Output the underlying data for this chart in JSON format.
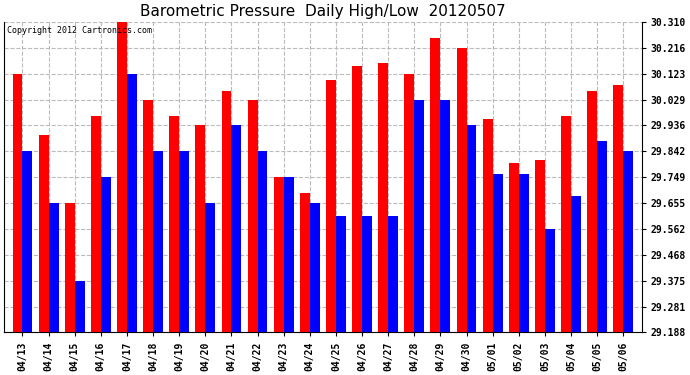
{
  "title": "Barometric Pressure  Daily High/Low  20120507",
  "copyright": "Copyright 2012 Cartronics.com",
  "categories": [
    "04/13",
    "04/14",
    "04/15",
    "04/16",
    "04/17",
    "04/18",
    "04/19",
    "04/20",
    "04/21",
    "04/22",
    "04/23",
    "04/24",
    "04/25",
    "04/26",
    "04/27",
    "04/28",
    "04/29",
    "04/30",
    "05/01",
    "05/02",
    "05/03",
    "05/04",
    "05/05",
    "05/06"
  ],
  "highs": [
    30.123,
    29.9,
    29.655,
    29.97,
    30.31,
    30.029,
    29.97,
    29.936,
    30.06,
    30.029,
    29.749,
    29.69,
    30.1,
    30.15,
    30.16,
    30.123,
    30.25,
    30.216,
    29.96,
    29.8,
    29.81,
    29.97,
    30.06,
    30.08
  ],
  "lows": [
    29.842,
    29.655,
    29.375,
    29.749,
    30.123,
    29.842,
    29.842,
    29.655,
    29.936,
    29.842,
    29.749,
    29.655,
    29.608,
    29.608,
    29.608,
    30.029,
    30.029,
    29.936,
    29.76,
    29.76,
    29.562,
    29.68,
    29.88,
    29.842
  ],
  "ylim": [
    29.188,
    30.31
  ],
  "yticks": [
    29.188,
    29.281,
    29.375,
    29.468,
    29.562,
    29.655,
    29.749,
    29.842,
    29.936,
    30.029,
    30.123,
    30.216,
    30.31
  ],
  "bar_width": 0.38,
  "high_color": "#FF0000",
  "low_color": "#0000FF",
  "background_color": "#FFFFFF",
  "grid_color": "#BBBBBB",
  "title_fontsize": 11,
  "tick_fontsize": 7,
  "figwidth": 6.9,
  "figheight": 3.75,
  "dpi": 100
}
